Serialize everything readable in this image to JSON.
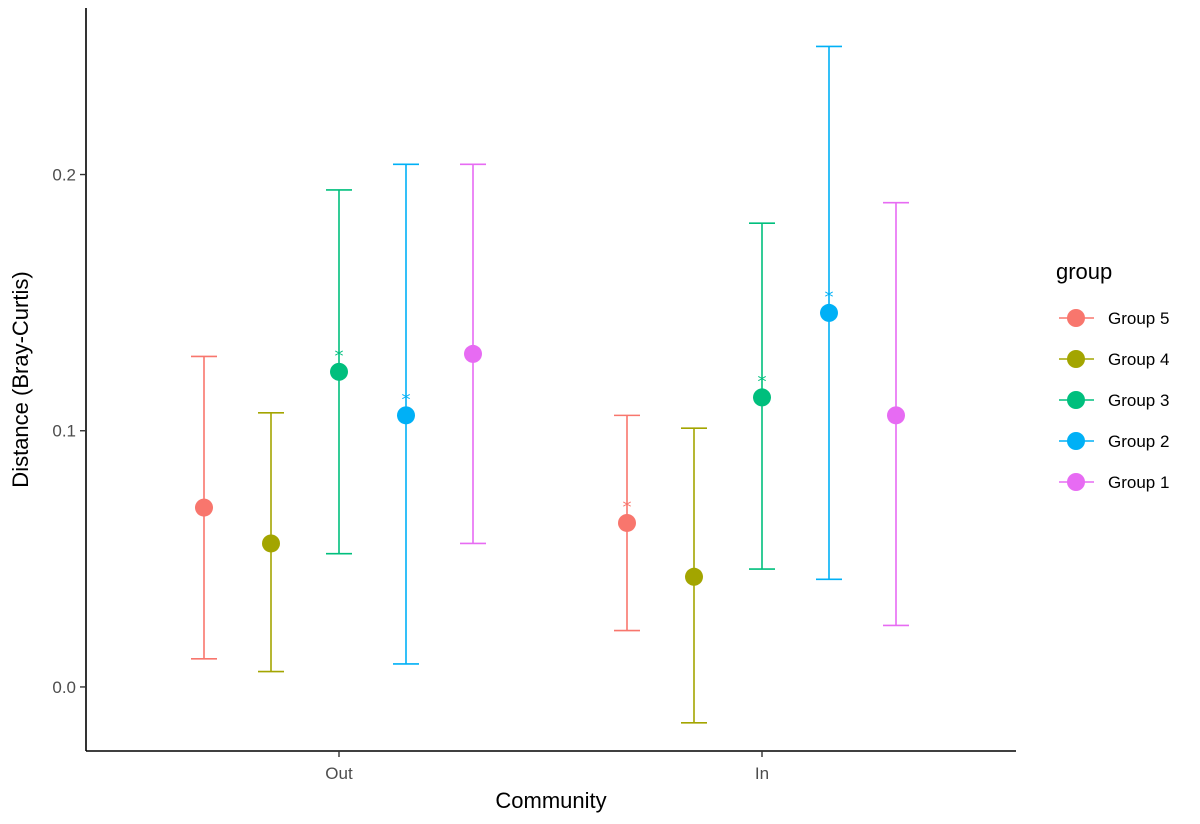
{
  "chart_data": {
    "type": "scatter",
    "xlabel": "Community",
    "ylabel": "Distance (Bray-Curtis)",
    "categories": [
      "Out",
      "In"
    ],
    "y_ticks": [
      "0.0",
      "0.1",
      "0.2"
    ],
    "ylim": [
      -0.025,
      0.265
    ],
    "grid": false,
    "legend": {
      "title": "group",
      "placement": "right"
    },
    "series": [
      {
        "name": "Group 5",
        "color": "#F8766D",
        "mean": [
          0.07,
          0.064
        ],
        "lower": [
          0.011,
          0.022
        ],
        "upper": [
          0.129,
          0.106
        ],
        "significant": [
          false,
          true
        ]
      },
      {
        "name": "Group 4",
        "color": "#A3A500",
        "mean": [
          0.056,
          0.043
        ],
        "lower": [
          0.006,
          -0.014
        ],
        "upper": [
          0.107,
          0.101
        ],
        "significant": [
          false,
          false
        ]
      },
      {
        "name": "Group 3",
        "color": "#00BF7D",
        "mean": [
          0.123,
          0.113
        ],
        "lower": [
          0.052,
          0.046
        ],
        "upper": [
          0.194,
          0.181
        ],
        "significant": [
          true,
          true
        ]
      },
      {
        "name": "Group 2",
        "color": "#00B0F6",
        "mean": [
          0.106,
          0.146
        ],
        "lower": [
          0.009,
          0.042
        ],
        "upper": [
          0.204,
          0.25
        ],
        "significant": [
          true,
          true
        ]
      },
      {
        "name": "Group 1",
        "color": "#E76BF3",
        "mean": [
          0.13,
          0.106
        ],
        "lower": [
          0.056,
          0.024
        ],
        "upper": [
          0.204,
          0.189
        ],
        "significant": [
          false,
          false
        ]
      }
    ],
    "significance_marker": "*"
  }
}
